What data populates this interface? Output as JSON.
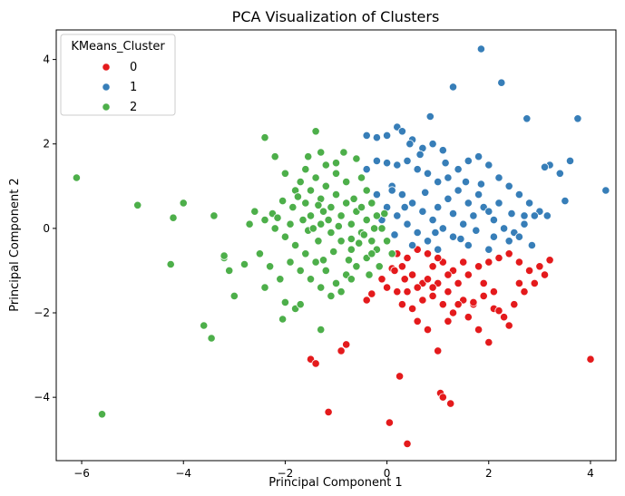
{
  "chart_data": {
    "type": "scatter",
    "title": "PCA Visualization of Clusters",
    "xlabel": "Principal Component 1",
    "ylabel": "Principal Component 2",
    "xlim": [
      -6.5,
      4.5
    ],
    "ylim": [
      -5.5,
      4.7
    ],
    "xticks": [
      -6,
      -4,
      -2,
      0,
      2,
      4
    ],
    "yticks": [
      -4,
      -2,
      0,
      2,
      4
    ],
    "xtick_labels": [
      "−6",
      "−4",
      "−2",
      "0",
      "2",
      "4"
    ],
    "ytick_labels": [
      "−4",
      "−2",
      "0",
      "2",
      "4"
    ],
    "grid": false,
    "legend": {
      "title": "KMeans_Cluster",
      "placement": "top-left"
    },
    "series": [
      {
        "name": "0",
        "color": "#e41a1c",
        "points": [
          [
            0.2,
            -0.6
          ],
          [
            0.4,
            -0.7
          ],
          [
            0.6,
            -0.5
          ],
          [
            0.8,
            -0.6
          ],
          [
            0.3,
            -0.9
          ],
          [
            0.5,
            -1.1
          ],
          [
            0.9,
            -0.9
          ],
          [
            1.1,
            -0.8
          ],
          [
            1.3,
            -1.0
          ],
          [
            0.7,
            -1.3
          ],
          [
            0.1,
            -0.95
          ],
          [
            -0.1,
            -1.2
          ],
          [
            0.0,
            -1.4
          ],
          [
            0.2,
            -1.5
          ],
          [
            0.4,
            -1.5
          ],
          [
            0.6,
            -1.4
          ],
          [
            0.8,
            -1.2
          ],
          [
            1.0,
            -1.3
          ],
          [
            1.2,
            -1.5
          ],
          [
            1.4,
            -1.3
          ],
          [
            1.6,
            -1.1
          ],
          [
            1.8,
            -0.9
          ],
          [
            2.0,
            -0.8
          ],
          [
            2.2,
            -0.7
          ],
          [
            2.4,
            -0.6
          ],
          [
            2.6,
            -0.8
          ],
          [
            2.8,
            -1.0
          ],
          [
            3.0,
            -0.9
          ],
          [
            3.1,
            -1.1
          ],
          [
            3.2,
            -0.75
          ],
          [
            0.3,
            -1.8
          ],
          [
            0.5,
            -1.9
          ],
          [
            0.7,
            -1.7
          ],
          [
            0.9,
            -1.6
          ],
          [
            1.1,
            -1.8
          ],
          [
            1.3,
            -2.0
          ],
          [
            1.5,
            -1.7
          ],
          [
            1.7,
            -1.8
          ],
          [
            1.9,
            -1.6
          ],
          [
            2.1,
            -1.9
          ],
          [
            2.3,
            -2.1
          ],
          [
            2.5,
            -1.8
          ],
          [
            2.7,
            -1.5
          ],
          [
            2.9,
            -1.3
          ],
          [
            0.6,
            -2.2
          ],
          [
            0.8,
            -2.4
          ],
          [
            1.2,
            -2.2
          ],
          [
            1.4,
            -1.8
          ],
          [
            1.6,
            -2.1
          ],
          [
            1.8,
            -2.4
          ],
          [
            2.2,
            -1.95
          ],
          [
            2.4,
            -2.3
          ],
          [
            2.0,
            -2.7
          ],
          [
            1.0,
            -2.9
          ],
          [
            -0.4,
            -1.7
          ],
          [
            -0.3,
            -1.55
          ],
          [
            0.15,
            -1.0
          ],
          [
            1.7,
            -1.75
          ],
          [
            1.0,
            -0.7
          ],
          [
            1.5,
            -0.8
          ],
          [
            -1.5,
            -3.1
          ],
          [
            -1.4,
            -3.2
          ],
          [
            -0.9,
            -2.9
          ],
          [
            -0.8,
            -2.75
          ],
          [
            0.25,
            -3.5
          ],
          [
            1.05,
            -3.9
          ],
          [
            1.1,
            -4.0
          ],
          [
            1.25,
            -4.15
          ],
          [
            -1.15,
            -4.35
          ],
          [
            0.05,
            -4.6
          ],
          [
            0.4,
            -5.1
          ],
          [
            4.0,
            -3.1
          ],
          [
            0.35,
            -1.2
          ],
          [
            1.9,
            -1.3
          ],
          [
            2.6,
            -1.3
          ],
          [
            1.2,
            -1.1
          ],
          [
            2.1,
            -1.5
          ],
          [
            0.9,
            -1.4
          ]
        ]
      },
      {
        "name": "1",
        "color": "#377eb8",
        "points": [
          [
            1.85,
            4.25
          ],
          [
            2.25,
            3.45
          ],
          [
            1.3,
            3.35
          ],
          [
            0.85,
            2.65
          ],
          [
            2.75,
            2.6
          ],
          [
            3.75,
            2.6
          ],
          [
            0.2,
            2.4
          ],
          [
            0.0,
            2.2
          ],
          [
            -0.4,
            2.2
          ],
          [
            -0.2,
            2.15
          ],
          [
            0.3,
            2.3
          ],
          [
            0.5,
            2.1
          ],
          [
            0.7,
            1.9
          ],
          [
            0.9,
            2.0
          ],
          [
            1.1,
            1.85
          ],
          [
            0.4,
            1.6
          ],
          [
            0.2,
            1.5
          ],
          [
            0.0,
            1.55
          ],
          [
            -0.2,
            1.6
          ],
          [
            -0.4,
            1.4
          ],
          [
            0.6,
            1.4
          ],
          [
            0.8,
            1.3
          ],
          [
            1.0,
            1.1
          ],
          [
            1.2,
            1.2
          ],
          [
            1.4,
            1.4
          ],
          [
            1.6,
            1.6
          ],
          [
            1.8,
            1.7
          ],
          [
            2.0,
            1.5
          ],
          [
            2.2,
            1.2
          ],
          [
            2.4,
            1.0
          ],
          [
            2.6,
            0.8
          ],
          [
            2.8,
            0.6
          ],
          [
            3.0,
            0.4
          ],
          [
            3.2,
            1.5
          ],
          [
            3.4,
            1.3
          ],
          [
            3.6,
            1.6
          ],
          [
            3.5,
            0.65
          ],
          [
            4.3,
            0.9
          ],
          [
            0.1,
            1.0
          ],
          [
            0.3,
            0.8
          ],
          [
            0.5,
            0.6
          ],
          [
            0.7,
            0.4
          ],
          [
            0.9,
            0.2
          ],
          [
            1.1,
            0.0
          ],
          [
            1.3,
            -0.2
          ],
          [
            1.5,
            0.1
          ],
          [
            1.7,
            0.3
          ],
          [
            1.9,
            0.5
          ],
          [
            2.1,
            0.2
          ],
          [
            2.3,
            0.0
          ],
          [
            2.5,
            -0.1
          ],
          [
            2.7,
            0.1
          ],
          [
            2.9,
            0.3
          ],
          [
            0.2,
            0.3
          ],
          [
            0.4,
            0.1
          ],
          [
            0.6,
            -0.1
          ],
          [
            0.8,
            -0.3
          ],
          [
            1.0,
            0.5
          ],
          [
            1.2,
            0.7
          ],
          [
            1.4,
            0.9
          ],
          [
            1.6,
            0.6
          ],
          [
            1.8,
            0.8
          ],
          [
            2.0,
            0.4
          ],
          [
            2.2,
            0.6
          ],
          [
            2.4,
            -0.3
          ],
          [
            2.6,
            -0.2
          ],
          [
            2.85,
            -0.4
          ],
          [
            0.0,
            0.5
          ],
          [
            -0.2,
            0.8
          ],
          [
            -0.1,
            0.2
          ],
          [
            0.15,
            -0.15
          ],
          [
            0.5,
            -0.4
          ],
          [
            1.0,
            -0.5
          ],
          [
            1.6,
            -0.4
          ],
          [
            2.0,
            -0.5
          ],
          [
            2.1,
            -0.2
          ],
          [
            1.15,
            1.55
          ],
          [
            1.55,
            1.1
          ],
          [
            0.65,
            1.75
          ],
          [
            1.3,
            0.35
          ],
          [
            1.75,
            -0.05
          ],
          [
            2.45,
            0.35
          ],
          [
            3.1,
            1.45
          ],
          [
            0.45,
            2.0
          ],
          [
            0.35,
            0.5
          ],
          [
            1.85,
            1.05
          ],
          [
            0.75,
            0.85
          ],
          [
            0.95,
            -0.1
          ],
          [
            1.45,
            -0.25
          ],
          [
            2.7,
            0.3
          ],
          [
            3.15,
            0.3
          ],
          [
            0.1,
            0.9
          ]
        ]
      },
      {
        "name": "2",
        "color": "#4daf4a",
        "points": [
          [
            -6.1,
            1.2
          ],
          [
            -4.9,
            0.55
          ],
          [
            -4.2,
            0.25
          ],
          [
            -4.0,
            0.6
          ],
          [
            -4.25,
            -0.85
          ],
          [
            -3.6,
            -2.3
          ],
          [
            -3.45,
            -2.6
          ],
          [
            -5.6,
            -4.4
          ],
          [
            -3.2,
            -0.7
          ],
          [
            -3.1,
            -1.0
          ],
          [
            -3.0,
            -1.6
          ],
          [
            -3.4,
            0.3
          ],
          [
            -3.2,
            -0.65
          ],
          [
            -2.8,
            -0.85
          ],
          [
            -2.7,
            0.1
          ],
          [
            -2.5,
            -0.6
          ],
          [
            -2.4,
            2.15
          ],
          [
            -2.2,
            1.7
          ],
          [
            -2.0,
            1.3
          ],
          [
            -1.8,
            0.9
          ],
          [
            -1.6,
            0.6
          ],
          [
            -1.4,
            2.3
          ],
          [
            -1.3,
            1.8
          ],
          [
            -1.2,
            1.5
          ],
          [
            -1.0,
            1.3
          ],
          [
            -0.8,
            1.1
          ],
          [
            -0.6,
            1.65
          ],
          [
            -0.5,
            1.2
          ],
          [
            -0.4,
            0.9
          ],
          [
            -0.3,
            0.6
          ],
          [
            -0.2,
            0.3
          ],
          [
            -0.1,
            0.0
          ],
          [
            0.0,
            -0.3
          ],
          [
            0.1,
            -0.6
          ],
          [
            -0.2,
            -0.5
          ],
          [
            -0.4,
            -0.7
          ],
          [
            -0.6,
            -0.9
          ],
          [
            -0.8,
            -1.1
          ],
          [
            -1.0,
            -1.3
          ],
          [
            -1.2,
            -1.0
          ],
          [
            -1.4,
            -0.8
          ],
          [
            -1.6,
            -0.6
          ],
          [
            -1.8,
            -0.4
          ],
          [
            -2.0,
            -0.2
          ],
          [
            -2.2,
            0.0
          ],
          [
            -2.4,
            0.2
          ],
          [
            -2.6,
            0.4
          ],
          [
            -1.5,
            0.3
          ],
          [
            -1.3,
            0.1
          ],
          [
            -1.1,
            -0.1
          ],
          [
            -0.9,
            -0.3
          ],
          [
            -0.7,
            -0.5
          ],
          [
            -1.7,
            1.1
          ],
          [
            -1.5,
            0.9
          ],
          [
            -1.3,
            0.7
          ],
          [
            -1.1,
            0.5
          ],
          [
            -0.9,
            0.3
          ],
          [
            -0.7,
            0.1
          ],
          [
            -0.5,
            -0.1
          ],
          [
            -0.3,
            -0.3
          ],
          [
            -1.9,
            -0.8
          ],
          [
            -1.7,
            -1.0
          ],
          [
            -1.5,
            -1.2
          ],
          [
            -1.3,
            -1.4
          ],
          [
            -1.1,
            -1.6
          ],
          [
            -0.9,
            -1.5
          ],
          [
            -0.7,
            -1.2
          ],
          [
            -2.1,
            -1.2
          ],
          [
            -2.0,
            -1.75
          ],
          [
            -1.8,
            -1.9
          ],
          [
            -1.7,
            -1.8
          ],
          [
            -2.05,
            -2.15
          ],
          [
            -1.3,
            -2.4
          ],
          [
            -2.4,
            -1.4
          ],
          [
            -2.3,
            -0.9
          ],
          [
            -1.0,
            0.8
          ],
          [
            -0.8,
            0.6
          ],
          [
            -0.6,
            0.4
          ],
          [
            -0.4,
            0.2
          ],
          [
            -1.6,
            1.4
          ],
          [
            -1.4,
            1.2
          ],
          [
            -1.2,
            1.0
          ],
          [
            -1.0,
            1.55
          ],
          [
            -0.85,
            1.8
          ],
          [
            -1.15,
            0.2
          ],
          [
            -1.35,
            -0.3
          ],
          [
            -1.55,
            -0.05
          ],
          [
            -0.75,
            -0.75
          ],
          [
            -0.55,
            -0.35
          ],
          [
            -0.35,
            -1.1
          ],
          [
            -0.15,
            -0.9
          ],
          [
            -0.65,
            0.7
          ],
          [
            -0.95,
            0.05
          ],
          [
            -1.25,
            0.4
          ],
          [
            -1.45,
            0.0
          ],
          [
            -1.65,
            0.2
          ],
          [
            -1.85,
            0.5
          ],
          [
            -2.05,
            0.65
          ],
          [
            -2.25,
            0.35
          ],
          [
            -0.5,
            0.5
          ],
          [
            -1.9,
            0.1
          ],
          [
            -0.3,
            -0.6
          ],
          [
            -0.05,
            0.35
          ],
          [
            -1.05,
            -0.55
          ],
          [
            -1.25,
            -0.75
          ],
          [
            -0.45,
            -0.15
          ],
          [
            -1.75,
            0.75
          ],
          [
            -1.55,
            1.7
          ],
          [
            -0.7,
            -0.25
          ],
          [
            -0.25,
            0.0
          ],
          [
            -2.15,
            0.25
          ],
          [
            -1.35,
            0.55
          ]
        ]
      }
    ]
  }
}
